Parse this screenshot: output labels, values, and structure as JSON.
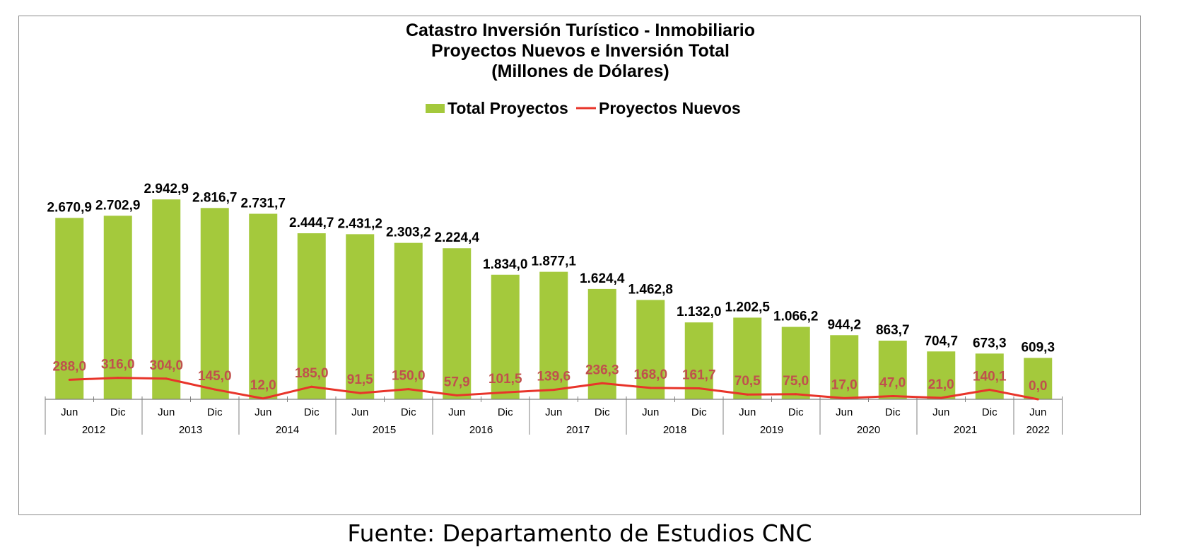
{
  "chart_data": {
    "type": "bar",
    "title": [
      "Catastro Inversión Turístico - Inmobiliario",
      "Proyectos Nuevos e Inversión Total",
      "(Millones de Dólares)"
    ],
    "categories": [
      "Jun",
      "Dic",
      "Jun",
      "Dic",
      "Jun",
      "Dic",
      "Jun",
      "Dic",
      "Jun",
      "Dic",
      "Jun",
      "Dic",
      "Jun",
      "Dic",
      "Jun",
      "Dic",
      "Jun",
      "Dic",
      "Jun",
      "Dic",
      "Jun"
    ],
    "years": [
      {
        "label": "2012",
        "count": 2
      },
      {
        "label": "2013",
        "count": 2
      },
      {
        "label": "2014",
        "count": 2
      },
      {
        "label": "2015",
        "count": 2
      },
      {
        "label": "2016",
        "count": 2
      },
      {
        "label": "2017",
        "count": 2
      },
      {
        "label": "2018",
        "count": 2
      },
      {
        "label": "2019",
        "count": 2
      },
      {
        "label": "2020",
        "count": 2
      },
      {
        "label": "2021",
        "count": 2
      },
      {
        "label": "2022",
        "count": 1
      }
    ],
    "series": [
      {
        "name": "Total Proyectos",
        "kind": "bar",
        "color": "#a4c93c",
        "values": [
          2670.9,
          2702.9,
          2942.9,
          2816.7,
          2731.7,
          2444.7,
          2431.2,
          2303.2,
          2224.4,
          1834.0,
          1877.1,
          1624.4,
          1462.8,
          1132.0,
          1202.5,
          1066.2,
          944.2,
          863.7,
          704.7,
          673.3,
          609.3
        ],
        "labels": [
          "2.670,9",
          "2.702,9",
          "2.942,9",
          "2.816,7",
          "2.731,7",
          "2.444,7",
          "2.431,2",
          "2.303,2",
          "2.224,4",
          "1.834,0",
          "1.877,1",
          "1.624,4",
          "1.462,8",
          "1.132,0",
          "1.202,5",
          "1.066,2",
          "944,2",
          "863,7",
          "704,7",
          "673,3",
          "609,3"
        ]
      },
      {
        "name": "Proyectos Nuevos",
        "kind": "line",
        "color": "#e8342a",
        "label_color": "#c0504d",
        "values": [
          288.0,
          316.0,
          304.0,
          145.0,
          12.0,
          185.0,
          91.5,
          150.0,
          57.9,
          101.5,
          139.6,
          236.3,
          168.0,
          161.7,
          70.5,
          75.0,
          17.0,
          47.0,
          21.0,
          140.1,
          0.0
        ],
        "labels": [
          "288,0",
          "316,0",
          "304,0",
          "145,0",
          "12,0",
          "185,0",
          "91,5",
          "150,0",
          "57,9",
          "101,5",
          "139,6",
          "236,3",
          "168,0",
          "161,7",
          "70,5",
          "75,0",
          "17,0",
          "47,0",
          "21,0",
          "140,1",
          "0,0"
        ]
      }
    ],
    "ylim": [
      0,
      3000
    ],
    "grid": false,
    "legend": "top-center"
  },
  "source": "Fuente: Departamento de Estudios CNC"
}
